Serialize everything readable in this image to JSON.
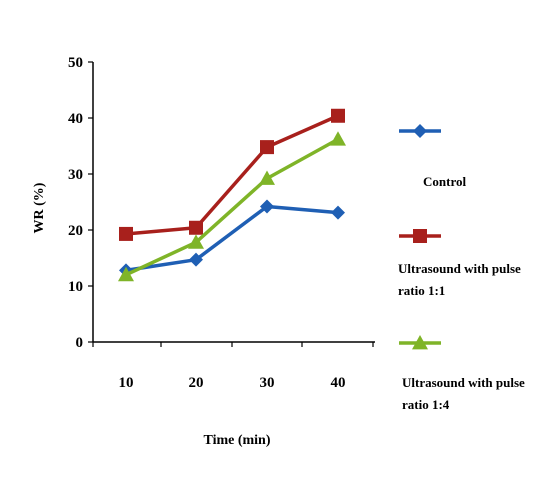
{
  "chart_data": {
    "type": "line",
    "title": "",
    "xlabel": "Time (min)",
    "ylabel": "WR (%)",
    "x": [
      10,
      20,
      30,
      40
    ],
    "ylim": [
      0,
      50
    ],
    "yticks": [
      0,
      10,
      20,
      30,
      40,
      50
    ],
    "grid": false,
    "legend_position": "right",
    "series": [
      {
        "name": "Control",
        "values": [
          12.8,
          14.7,
          24.2,
          23.1
        ],
        "color": "#1f5fb4",
        "marker": "diamond"
      },
      {
        "name": "Ultrasound with pulse ratio 1:1",
        "values": [
          19.3,
          20.4,
          34.8,
          40.4
        ],
        "color": "#a8201c",
        "marker": "square"
      },
      {
        "name": "Ultrasound with pulse ratio 1:4",
        "values": [
          12.0,
          17.8,
          29.2,
          36.2
        ],
        "color": "#7fb428",
        "marker": "triangle"
      }
    ],
    "legend_lines": [
      [
        "Control"
      ],
      [
        "Ultrasound with pulse",
        "ratio 1:1"
      ],
      [
        "Ultrasound with pulse",
        "ratio 1:4"
      ]
    ]
  }
}
